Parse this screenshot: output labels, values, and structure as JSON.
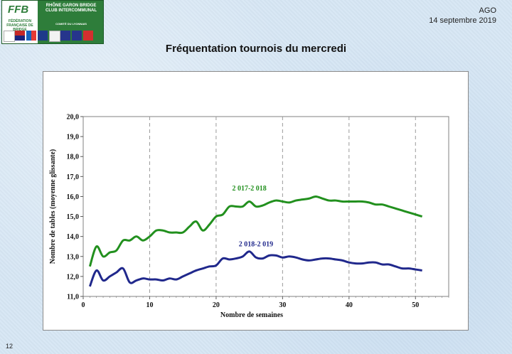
{
  "header": {
    "logo": {
      "ffb": "FFB",
      "federation": "FÉDÉRATION FRANÇAISE DE BRIDGE",
      "club": "RHÔNE GARON BRIDGE CLUB INTERCOMMUNAL",
      "comite": "COMITÉ DU LYONNAIS"
    },
    "meeting": "AGO",
    "date": "14 septembre 2019"
  },
  "slide": {
    "title": "Fréquentation tournois du mercredi",
    "number": "12"
  },
  "chart_data": {
    "type": "line",
    "title": "",
    "xlabel": "Nombre de semaines",
    "ylabel": "Nombre de tables (moyenne glissante)",
    "xlim": [
      0,
      55
    ],
    "ylim": [
      11.0,
      20.0
    ],
    "x_ticks": [
      "0",
      "10",
      "20",
      "30",
      "40",
      "50"
    ],
    "y_ticks": [
      "11,0",
      "12,0",
      "13,0",
      "14,0",
      "15,0",
      "16,0",
      "17,0",
      "18,0",
      "19,0",
      "20,0"
    ],
    "grid": "vertical dashed",
    "series": [
      {
        "name": "2 017-2 018",
        "color": "#22901e",
        "x": [
          1,
          2,
          3,
          4,
          5,
          6,
          7,
          8,
          9,
          10,
          11,
          12,
          13,
          14,
          15,
          16,
          17,
          18,
          19,
          20,
          21,
          22,
          23,
          24,
          25,
          26,
          27,
          28,
          29,
          30,
          31,
          32,
          33,
          34,
          35,
          36,
          37,
          38,
          39,
          40,
          41,
          42,
          43,
          44,
          45,
          46,
          47,
          48,
          49,
          50,
          51
        ],
        "values": [
          12.5,
          13.5,
          13.0,
          13.2,
          13.3,
          13.8,
          13.8,
          14.0,
          13.8,
          14.0,
          14.3,
          14.3,
          14.2,
          14.2,
          14.2,
          14.5,
          14.75,
          14.3,
          14.6,
          15.0,
          15.1,
          15.5,
          15.5,
          15.5,
          15.75,
          15.5,
          15.55,
          15.7,
          15.8,
          15.75,
          15.7,
          15.8,
          15.85,
          15.9,
          16.0,
          15.9,
          15.8,
          15.8,
          15.75,
          15.75,
          15.75,
          15.75,
          15.7,
          15.6,
          15.6,
          15.5,
          15.4,
          15.3,
          15.2,
          15.1,
          15.0
        ]
      },
      {
        "name": "2 018-2 019",
        "color": "#20288c",
        "x": [
          1,
          2,
          3,
          4,
          5,
          6,
          7,
          8,
          9,
          10,
          11,
          12,
          13,
          14,
          15,
          16,
          17,
          18,
          19,
          20,
          21,
          22,
          23,
          24,
          25,
          26,
          27,
          28,
          29,
          30,
          31,
          32,
          33,
          34,
          35,
          36,
          37,
          38,
          39,
          40,
          41,
          42,
          43,
          44,
          45,
          46,
          47,
          48,
          49,
          50,
          51
        ],
        "values": [
          11.5,
          12.3,
          11.8,
          12.0,
          12.2,
          12.4,
          11.7,
          11.8,
          11.9,
          11.85,
          11.85,
          11.8,
          11.9,
          11.85,
          12.0,
          12.15,
          12.3,
          12.4,
          12.5,
          12.55,
          12.9,
          12.85,
          12.9,
          13.0,
          13.25,
          12.95,
          12.9,
          13.05,
          13.05,
          12.95,
          13.0,
          12.95,
          12.85,
          12.8,
          12.85,
          12.9,
          12.9,
          12.85,
          12.8,
          12.7,
          12.65,
          12.65,
          12.7,
          12.7,
          12.6,
          12.6,
          12.5,
          12.4,
          12.4,
          12.35,
          12.3
        ]
      }
    ],
    "series_label_positions": [
      {
        "x": 25,
        "y": 16.3
      },
      {
        "x": 26,
        "y": 13.5
      }
    ]
  }
}
